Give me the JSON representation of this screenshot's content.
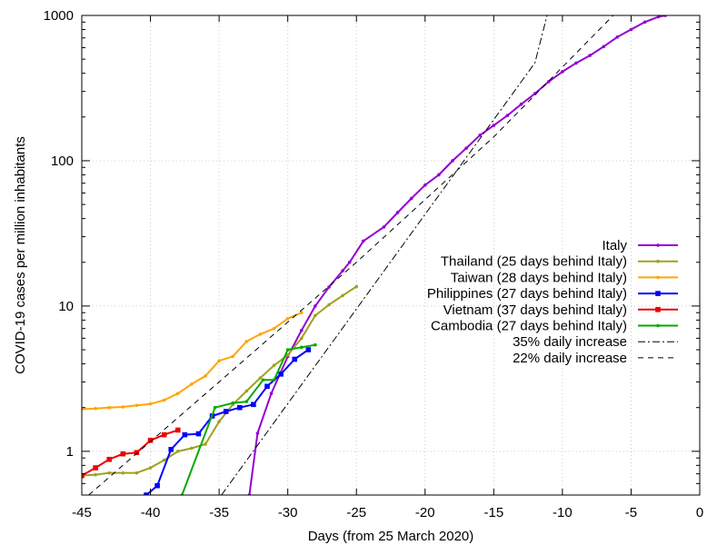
{
  "chart_data": {
    "type": "line",
    "xlabel": "Days (from 25 March 2020)",
    "ylabel": "COVID-19 cases per million inhabitants",
    "xlim": [
      -45,
      0
    ],
    "ylim": [
      0.5,
      1000
    ],
    "yscale": "log",
    "grid": true,
    "legend_position": "right",
    "x_ticks": [
      {
        "value": -45,
        "label": "-45"
      },
      {
        "value": -40,
        "label": "-40"
      },
      {
        "value": -35,
        "label": "-35"
      },
      {
        "value": -30,
        "label": "-30"
      },
      {
        "value": -25,
        "label": "-25"
      },
      {
        "value": -20,
        "label": "-20"
      },
      {
        "value": -15,
        "label": "-15"
      },
      {
        "value": -10,
        "label": "-10"
      },
      {
        "value": -5,
        "label": "-5"
      },
      {
        "value": 0,
        "label": "0"
      }
    ],
    "y_ticks": [
      {
        "value": 1,
        "label": "1"
      },
      {
        "value": 10,
        "label": "10"
      },
      {
        "value": 100,
        "label": "100"
      },
      {
        "value": 1000,
        "label": "1000"
      }
    ],
    "series": [
      {
        "name": "Italy",
        "color": "#9400d3",
        "marker": "dot",
        "points": [
          [
            -32.8,
            0.5
          ],
          [
            -32.2,
            1.33
          ],
          [
            -31.2,
            2.5
          ],
          [
            -30,
            4.5
          ],
          [
            -29,
            6.8
          ],
          [
            -28,
            10
          ],
          [
            -27,
            13.5
          ],
          [
            -26,
            17.5
          ],
          [
            -25.5,
            20
          ],
          [
            -24.5,
            28
          ],
          [
            -23,
            35
          ],
          [
            -22,
            44
          ],
          [
            -21,
            55
          ],
          [
            -20,
            68
          ],
          [
            -19,
            80
          ],
          [
            -18,
            100
          ],
          [
            -17,
            122
          ],
          [
            -16,
            150
          ],
          [
            -15,
            175
          ],
          [
            -14,
            205
          ],
          [
            -13,
            245
          ],
          [
            -12,
            290
          ],
          [
            -11,
            350
          ],
          [
            -10,
            410
          ],
          [
            -9,
            470
          ],
          [
            -8,
            530
          ],
          [
            -7,
            610
          ],
          [
            -6,
            710
          ],
          [
            -5,
            800
          ],
          [
            -4,
            900
          ],
          [
            -3,
            980
          ],
          [
            -2.5,
            1000
          ]
        ]
      },
      {
        "name": "Thailand (25 days behind Italy)",
        "color": "#a0a020",
        "marker": "dot",
        "points": [
          [
            -45,
            0.68
          ],
          [
            -44,
            0.69
          ],
          [
            -43,
            0.71
          ],
          [
            -42,
            0.71
          ],
          [
            -41,
            0.71
          ],
          [
            -40,
            0.77
          ],
          [
            -39,
            0.87
          ],
          [
            -38,
            1.0
          ],
          [
            -37,
            1.05
          ],
          [
            -36,
            1.12
          ],
          [
            -35,
            1.6
          ],
          [
            -34,
            2.1
          ],
          [
            -33,
            2.6
          ],
          [
            -32,
            3.2
          ],
          [
            -31,
            3.9
          ],
          [
            -30,
            4.6
          ],
          [
            -29,
            6.0
          ],
          [
            -28,
            8.6
          ],
          [
            -27,
            10.2
          ],
          [
            -26,
            11.8
          ],
          [
            -25,
            13.6
          ]
        ]
      },
      {
        "name": "Taiwan (28 days behind Italy)",
        "color": "#ffa500",
        "marker": "dot",
        "points": [
          [
            -45,
            1.95
          ],
          [
            -44,
            1.97
          ],
          [
            -43,
            2.0
          ],
          [
            -42,
            2.02
          ],
          [
            -41,
            2.07
          ],
          [
            -40,
            2.12
          ],
          [
            -39,
            2.25
          ],
          [
            -38,
            2.5
          ],
          [
            -37,
            2.9
          ],
          [
            -36,
            3.3
          ],
          [
            -35,
            4.2
          ],
          [
            -34,
            4.5
          ],
          [
            -33,
            5.7
          ],
          [
            -32,
            6.4
          ],
          [
            -31,
            7.0
          ],
          [
            -30,
            8.2
          ],
          [
            -29,
            9.0
          ]
        ]
      },
      {
        "name": "Philippines (27 days behind Italy)",
        "color": "#0000ff",
        "marker": "square",
        "points": [
          [
            -40.3,
            0.5
          ],
          [
            -39.5,
            0.58
          ],
          [
            -38.5,
            1.03
          ],
          [
            -37.5,
            1.3
          ],
          [
            -36.5,
            1.32
          ],
          [
            -35.5,
            1.75
          ],
          [
            -34.5,
            1.88
          ],
          [
            -33.5,
            2.0
          ],
          [
            -32.5,
            2.1
          ],
          [
            -31.5,
            2.8
          ],
          [
            -30.5,
            3.4
          ],
          [
            -29.5,
            4.3
          ],
          [
            -28.5,
            5.0
          ]
        ]
      },
      {
        "name": "Vietnam (37 days behind Italy)",
        "color": "#ee0000",
        "marker": "square",
        "points": [
          [
            -45,
            0.68
          ],
          [
            -44,
            0.77
          ],
          [
            -43,
            0.88
          ],
          [
            -42,
            0.96
          ],
          [
            -41,
            0.98
          ],
          [
            -40,
            1.19
          ],
          [
            -39,
            1.3
          ],
          [
            -38,
            1.4
          ]
        ]
      },
      {
        "name": "Cambodia (27 days behind Italy)",
        "color": "#00aa00",
        "marker": "dot",
        "points": [
          [
            -37.7,
            0.5
          ],
          [
            -35.3,
            2.0
          ],
          [
            -34,
            2.15
          ],
          [
            -33,
            2.2
          ],
          [
            -31.8,
            3.1
          ],
          [
            -31,
            3.1
          ],
          [
            -30,
            5.0
          ],
          [
            -29,
            5.2
          ],
          [
            -28,
            5.4
          ]
        ]
      },
      {
        "name": "35% daily increase",
        "color": "#000000",
        "dash": "8,3,2,3",
        "points": [
          [
            -34.83,
            0.5
          ],
          [
            -22,
            23.48
          ],
          [
            -12,
            472.6
          ],
          [
            -11.12,
            1000
          ]
        ]
      },
      {
        "name": "22% daily increase",
        "color": "#000000",
        "dash": "6,5",
        "points": [
          [
            -44.5,
            0.5
          ],
          [
            -35,
            3.0
          ],
          [
            -25,
            20.0
          ],
          [
            -15,
            146.0
          ],
          [
            -6.3,
            1000
          ]
        ]
      }
    ]
  }
}
